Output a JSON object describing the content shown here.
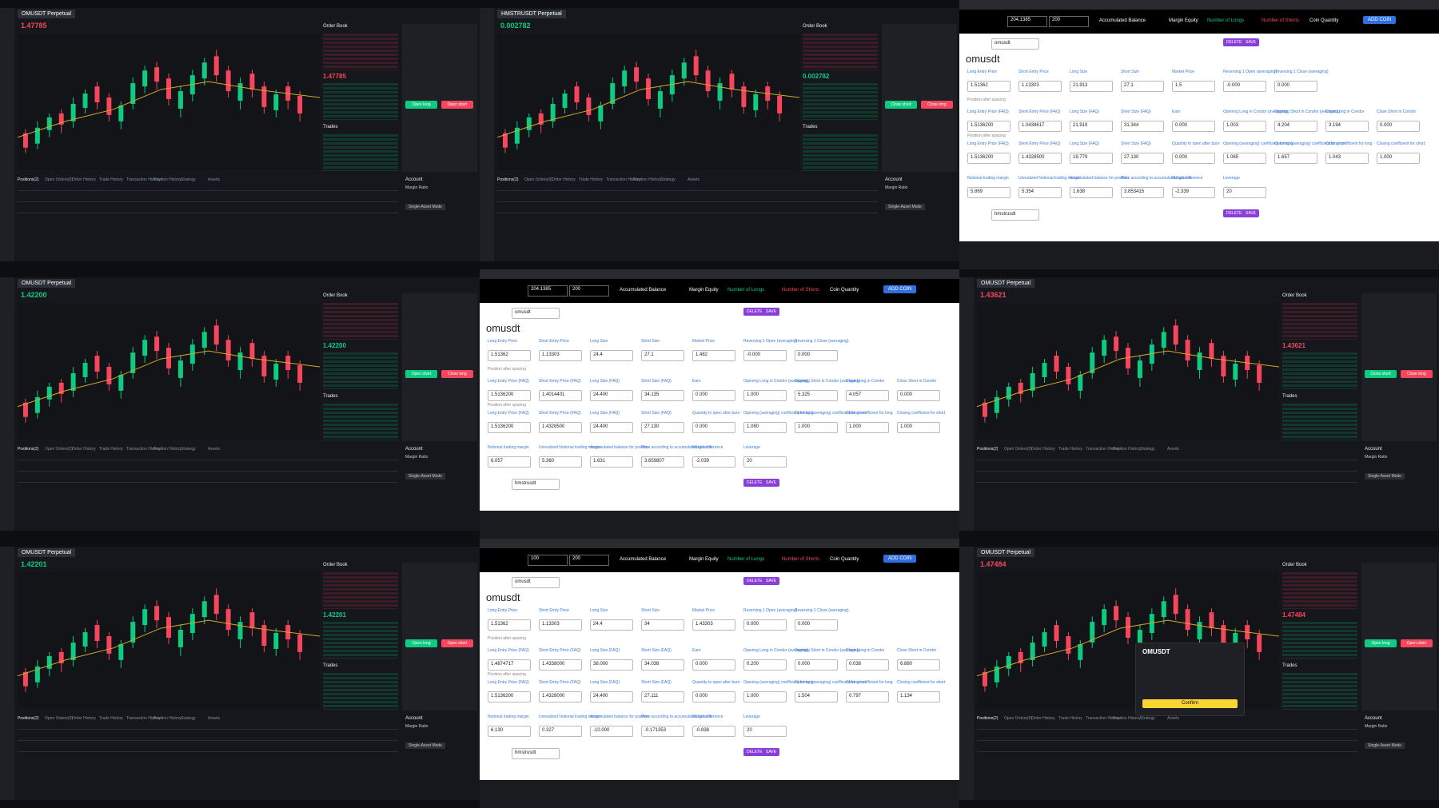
{
  "trade_labels": {
    "order_book": "Order Book",
    "trades": "Trades",
    "account": "Account",
    "margin_ratio": "Margin Ratio",
    "single_asset": "Single-Asset Mode",
    "tabs": [
      "Positions(2)",
      "Open Orders(0)",
      "Order History",
      "Trade History",
      "Transaction History",
      "Position History",
      "Strategy",
      "Assets"
    ]
  },
  "calc_labels": {
    "accumulated": "Accumulated Balance",
    "margin": "Margin Equity",
    "longs": "Number of Longs",
    "shorts": "Number of Shorts",
    "coin_qty": "Coin Quantity",
    "add": "ADD COIN",
    "delete": "DELETE",
    "save": "SAVE",
    "spacing": "Position after spacing",
    "rows": [
      [
        "Long Entry Price",
        "Short Entry Price",
        "Long Size",
        "Short Size",
        "Market Price",
        "Reversing 1 Open (averaging)",
        "Reversing 1 Close (averaging)"
      ],
      [
        "Long Entry Price (FAQ)",
        "Short Entry Price (FAQ)",
        "Long Size (FAQ)",
        "Short Size (FAQ)",
        "Earn",
        "Opening Long in Condor (averaging)",
        "Opening Short in Condor (averaging)",
        "Close Long in Condor",
        "Close Short in Condor"
      ],
      [
        "Long Entry Price (FAQ)",
        "Short Entry Price (FAQ)",
        "Long Size (FAQ)",
        "Short Size (FAQ)",
        "Quantity to open after burn",
        "Opening (averaging) coefficient for long",
        "Opening (averaging) coefficient for short",
        "Closing coefficient for long",
        "Closing coefficient for short"
      ],
      [
        "Notional trading margin",
        "Unrealized Notional trading margin",
        "Accumulated balance for position",
        "Price according to accumulated balance",
        "Margin difference",
        "Leverage"
      ]
    ]
  },
  "panels": [
    {
      "kind": "trade",
      "symbol": "OMUSDT Perpetual",
      "price": "1.47785",
      "price_color": "#f6465d",
      "buttons": [
        "Open long",
        "Open short"
      ]
    },
    {
      "kind": "trade",
      "symbol": "HMSTRUSDT Perpetual",
      "price": "0.002782",
      "price_color": "#0ecb81",
      "buttons": [
        "Close short",
        "Close long"
      ]
    },
    {
      "kind": "calc",
      "balance": "204.1385",
      "equity_input": "200",
      "name": "omusdt",
      "heading": "omusdt",
      "second_name": "hmstrusdt",
      "values": [
        [
          "1.51362",
          "1.13303",
          "21.913",
          "27.1",
          "1.5",
          "-0.000",
          "0.000"
        ],
        [
          "1.5136200",
          "1.0438617",
          "21.919",
          "31.344",
          "0.000",
          "1.003",
          "4.204",
          "3.194",
          "0.000"
        ],
        [
          "1.5136200",
          "1.4328500",
          "19.779",
          "27.130",
          "0.000",
          "1.085",
          "1.657",
          "1.043",
          "1.000"
        ],
        [
          "5.869",
          "5.354",
          "1.638",
          "3.853415",
          "-2.339",
          "20"
        ]
      ]
    },
    {
      "kind": "trade",
      "symbol": "OMUSDT Perpetual",
      "price": "1.42200",
      "price_color": "#0ecb81",
      "buttons": [
        "Open short",
        "Close long"
      ]
    },
    {
      "kind": "calc",
      "balance": "204.1385",
      "equity_input": "200",
      "name": "omusdt",
      "heading": "omusdt",
      "second_name": "hmstrusdt",
      "values": [
        [
          "1.51362",
          "1.13303",
          "24.4",
          "27.1",
          "1.482",
          "-0.000",
          "0.000"
        ],
        [
          "1.5136200",
          "1.4014401",
          "24.400",
          "34.135",
          "0.000",
          "1.000",
          "5.325",
          "4.057",
          "0.000"
        ],
        [
          "1.5136200",
          "1.4328500",
          "24.400",
          "27.130",
          "0.000",
          "1.080",
          "1.000",
          "1.000",
          "1.000"
        ],
        [
          "6.057",
          "5.360",
          "1.631",
          "3.659807",
          "-2.039",
          "20"
        ]
      ]
    },
    {
      "kind": "trade",
      "symbol": "OMUSDT Perpetual",
      "price": "1.43621",
      "price_color": "#f6465d",
      "buttons": [
        "Close short",
        "Close long"
      ]
    },
    {
      "kind": "trade",
      "symbol": "OMUSDT Perpetual",
      "price": "1.42201",
      "price_color": "#0ecb81",
      "buttons": [
        "Open long",
        "Open short"
      ]
    },
    {
      "kind": "calc",
      "balance": "100",
      "equity_input": "200",
      "name": "omusdt",
      "heading": "omusdt",
      "second_name": "hmstrusdt",
      "values": [
        [
          "1.51362",
          "1.13303",
          "24.4",
          "34",
          "1.43303",
          "0.000",
          "0.000"
        ],
        [
          "1.4874717",
          "1.4338000",
          "38.000",
          "34.038",
          "0.000",
          "0.200",
          "0.000",
          "0.038",
          "6.880"
        ],
        [
          "1.5136200",
          "1.4328000",
          "24.400",
          "27.111",
          "0.000",
          "1.000",
          "1.504",
          "0.797",
          "1.134"
        ],
        [
          "6.130",
          "0.327",
          "-10.000",
          "-0.171353",
          "-0.838",
          "20"
        ]
      ]
    },
    {
      "kind": "trade",
      "symbol": "OMUSDT Perpetual",
      "price": "1.47484",
      "price_color": "#f6465d",
      "buttons": [
        "Open long",
        "Open short"
      ],
      "dialog": {
        "title": "OMUSDT",
        "button": "Confirm"
      }
    }
  ]
}
